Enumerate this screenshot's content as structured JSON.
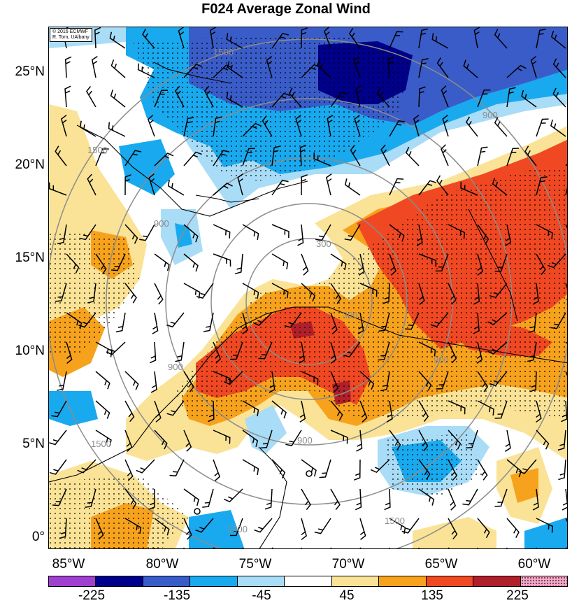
{
  "title": "F024 Average Zonal Wind",
  "credit": {
    "line1": "© 2016 ECMWF",
    "line2": "R. Torn, UAlbany"
  },
  "lat_labels": [
    "25°N",
    "20°N",
    "15°N",
    "10°N",
    "5°N",
    "0°"
  ],
  "lon_labels": [
    "85°W",
    "80°W",
    "75°W",
    "70°W",
    "65°W",
    "60°W"
  ],
  "colorbar": {
    "colors": [
      "#a040d0",
      "#00008b",
      "#3a5cc8",
      "#19a9ee",
      "#a9dcf6",
      "#ffffff",
      "#fae396",
      "#f7a21d",
      "#f04822",
      "#b0202a",
      "#f7a6c8"
    ],
    "labels": [
      "-225",
      "-135",
      "-45",
      "45",
      "135",
      "225"
    ]
  },
  "contour_labels": [
    "1500",
    "1500",
    "1500",
    "1500",
    "1500",
    "900",
    "900",
    "900",
    "900",
    "900",
    "300",
    "300"
  ]
}
